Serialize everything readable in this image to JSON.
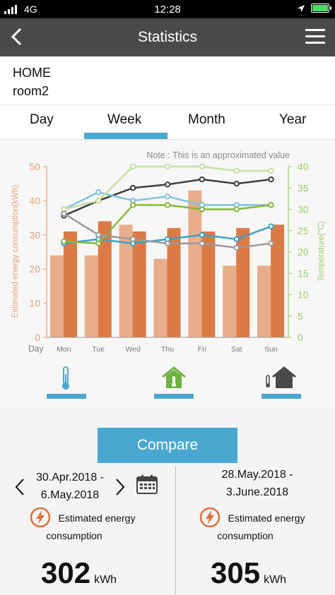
{
  "status_bar": {
    "carrier": "4G",
    "time": "12:28",
    "location_icon": "location-arrow-icon",
    "battery_icon": "battery-icon",
    "signal_icon": "signal-bars-icon"
  },
  "header": {
    "title": "Statistics",
    "back_icon": "chevron-left-icon",
    "menu_icon": "hamburger-menu-icon"
  },
  "location": {
    "home": "HOME",
    "room": "room2"
  },
  "tabs": [
    {
      "label": "Day"
    },
    {
      "label": "Week",
      "selected": true
    },
    {
      "label": "Month"
    },
    {
      "label": "Year"
    }
  ],
  "chart_data": {
    "type": "bar",
    "note": "Note : This is an approximated value",
    "x_label": "Day",
    "categories": [
      "Mon",
      "Tue",
      "Wed",
      "Thu",
      "Fri",
      "Sat",
      "Sun"
    ],
    "ylabel_left": "Estimated energy consumption(kWh)",
    "ylabel_right": "Temperature(°C)",
    "ylim_left": [
      0,
      50
    ],
    "yticks_left": [
      0,
      10,
      20,
      30,
      40,
      50
    ],
    "ylim_right": [
      0,
      40
    ],
    "yticks_right": [
      0,
      5,
      10,
      15,
      20,
      25,
      30,
      35,
      40
    ],
    "grid": false,
    "bar_series": [
      {
        "values": [
          24,
          24,
          33,
          23,
          43,
          21,
          21
        ],
        "color": "#e8ae8c"
      },
      {
        "values": [
          31,
          34,
          31,
          32,
          31,
          32,
          33
        ],
        "color": "#dc7a46"
      }
    ],
    "line_series": [
      {
        "values": [
          28.5,
          32,
          35,
          35.8,
          37,
          36,
          37
        ],
        "color": "#3e3e3e"
      },
      {
        "values": [
          30,
          34,
          32,
          33,
          31,
          31,
          31
        ],
        "color": "#7fc2df"
      },
      {
        "values": [
          30,
          32,
          40,
          40,
          40,
          39,
          39
        ],
        "color": "#c8dfa4"
      },
      {
        "values": [
          22,
          23,
          22,
          23,
          24,
          23,
          26
        ],
        "color": "#3d9fc6"
      },
      {
        "values": [
          22.5,
          22,
          31,
          31,
          30,
          30,
          31
        ],
        "color": "#86b83a"
      },
      {
        "values": [
          29,
          24,
          23,
          22,
          22,
          21,
          22
        ],
        "color": "#9a9a9a"
      }
    ],
    "colors": {
      "axis_left": "#e8a07a",
      "axis_right": "#9ccc6a"
    }
  },
  "filters": [
    {
      "icon": "thermometer-icon",
      "color": "#4aa8d0"
    },
    {
      "icon": "home-thermometer-icon",
      "color": "#6db33f"
    },
    {
      "icon": "thermometer-home-dark-icon",
      "color": "#4a4a4a"
    }
  ],
  "compare": {
    "button": "Compare",
    "left": {
      "range_line1": "30.Apr.2018 -",
      "range_line2": "6.May.2018",
      "label_line1": "Estimated energy",
      "label_line2": "consumption",
      "value": "302",
      "unit": "kWh"
    },
    "right": {
      "range_line1": "28.May.2018 -",
      "range_line2": "3.June.2018",
      "label_line1": "Estimated energy",
      "label_line2": "consumption",
      "value": "305",
      "unit": "kWh"
    },
    "accent": "#e0703a"
  }
}
